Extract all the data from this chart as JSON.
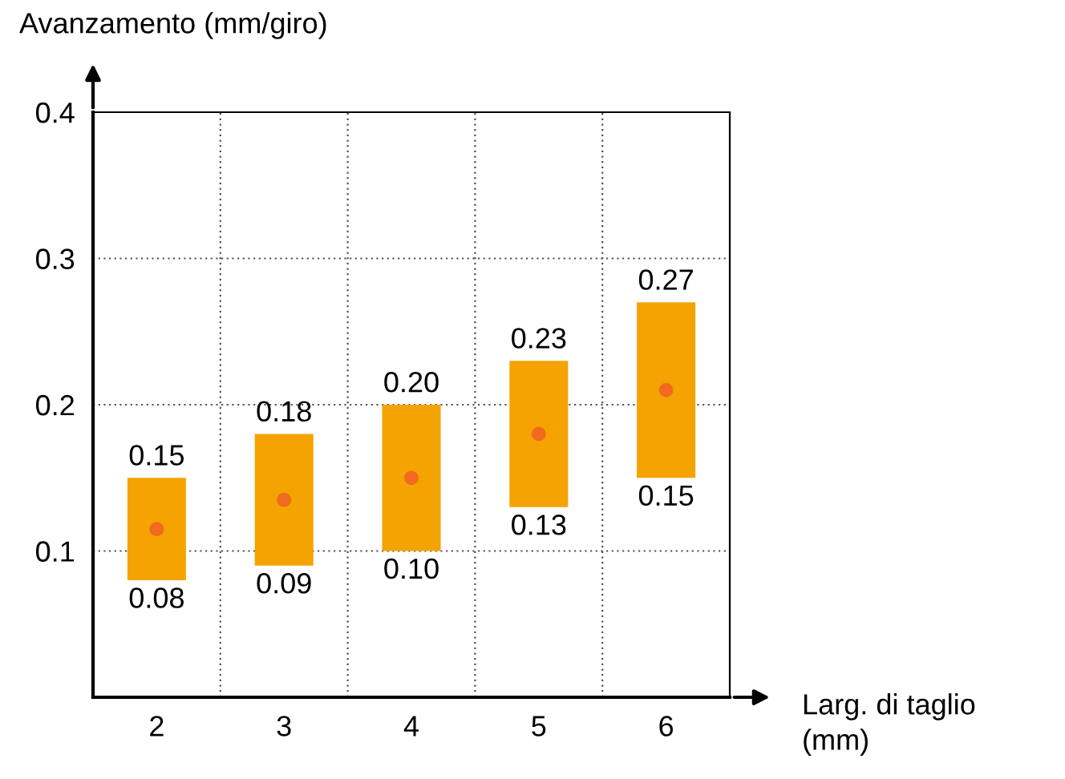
{
  "chart_data": {
    "type": "bar",
    "xlabel": "Larg. di taglio\n(mm)",
    "ylabel": "Avanzamento (mm/giro)",
    "categories": [
      "2",
      "3",
      "4",
      "5",
      "6"
    ],
    "series": [
      {
        "color": "#f5a300",
        "values": [
          0.07,
          0.09,
          0.1,
          0.1,
          0.12
        ],
        "base": [
          0.08,
          0.09,
          0.1,
          0.13,
          0.15
        ]
      },
      {
        "type": "scatter",
        "color": "#f06a20",
        "x": [
          "2",
          "3",
          "4",
          "5",
          "6"
        ],
        "values": [
          0.115,
          0.135,
          0.15,
          0.18,
          0.21
        ]
      }
    ],
    "annotations": [
      {
        "text": "0.15",
        "x": "2",
        "y": 0.15
      },
      {
        "text": "0.08",
        "x": "2",
        "y": 0.08
      },
      {
        "text": "0.18",
        "x": "3",
        "y": 0.18
      },
      {
        "text": "0.09",
        "x": "3",
        "y": 0.09
      },
      {
        "text": "0.20",
        "x": "4",
        "y": 0.2
      },
      {
        "text": "0.10",
        "x": "4",
        "y": 0.1
      },
      {
        "text": "0.23",
        "x": "5",
        "y": 0.23
      },
      {
        "text": "0.13",
        "x": "5",
        "y": 0.13
      },
      {
        "text": "0.27",
        "x": "6",
        "y": 0.27
      },
      {
        "text": "0.15",
        "x": "6",
        "y": 0.15
      }
    ],
    "ylim": [
      0,
      0.4
    ],
    "yticks": [
      {
        "value": 0,
        "label": null
      },
      0.1,
      0.2,
      0.3,
      0.4
    ],
    "grid": true,
    "marker": "circle",
    "legend": false
  }
}
